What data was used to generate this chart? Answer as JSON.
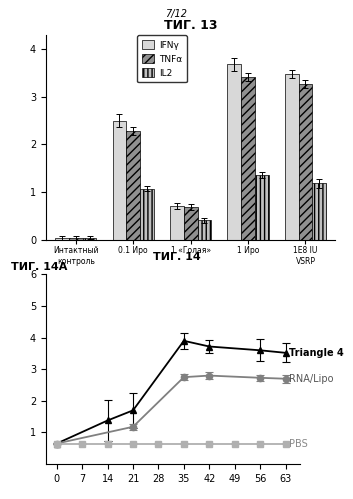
{
  "fig13": {
    "title": "ΤИГ. 13",
    "categories": [
      "Интактный\nконтроль",
      "0.1 Иро",
      "1 «Голая»",
      "1 Иро",
      "1E8 IU\nVSRP"
    ],
    "IFNy": [
      0.03,
      2.5,
      0.7,
      3.68,
      3.48
    ],
    "TNFa": [
      0.04,
      2.28,
      0.68,
      3.42,
      3.27
    ],
    "IL2": [
      0.04,
      1.07,
      0.4,
      1.35,
      1.18
    ],
    "IFNy_err": [
      0.04,
      0.13,
      0.06,
      0.13,
      0.09
    ],
    "TNFa_err": [
      0.04,
      0.09,
      0.06,
      0.09,
      0.09
    ],
    "IL2_err": [
      0.03,
      0.06,
      0.06,
      0.06,
      0.09
    ],
    "ylim": [
      0,
      4.3
    ],
    "yticks": [
      0,
      1,
      2,
      3,
      4
    ],
    "legend_labels": [
      "IFNγ",
      "TNFα",
      "IL2"
    ],
    "color_IFNy": "#d8d8d8",
    "color_TNFa": "#909090",
    "color_IL2": "#c0c0c0",
    "hatch_IFNy": "",
    "hatch_TNFa": "////",
    "hatch_IL2": "||||"
  },
  "fig14a": {
    "title": "ΤИГ. 14А",
    "fig_label": "ΤИГ. 14",
    "xvalues": [
      0,
      7,
      14,
      21,
      28,
      35,
      42,
      49,
      56,
      63
    ],
    "Triangle4_y": [
      0.65,
      null,
      1.38,
      1.7,
      null,
      3.9,
      3.72,
      null,
      3.6,
      3.52
    ],
    "RNALipo_y": [
      0.65,
      null,
      null,
      1.18,
      null,
      2.75,
      2.8,
      null,
      2.73,
      2.7
    ],
    "PBS_y": [
      0.65,
      0.65,
      0.65,
      0.65,
      0.65,
      0.65,
      0.65,
      0.65,
      0.65,
      0.65
    ],
    "Triangle4_err": [
      0.03,
      null,
      0.65,
      0.55,
      null,
      0.25,
      0.2,
      null,
      0.35,
      0.3
    ],
    "RNALipo_err": [
      0.03,
      null,
      null,
      0.1,
      null,
      0.1,
      0.1,
      null,
      0.1,
      0.12
    ],
    "PBS_err": [
      0.03,
      0.03,
      0.03,
      0.03,
      0.03,
      0.03,
      0.03,
      0.03,
      0.03,
      0.03
    ],
    "ylim": [
      0,
      6
    ],
    "yticks": [
      1,
      2,
      3,
      4,
      5,
      6
    ],
    "xticks": [
      0,
      7,
      14,
      21,
      28,
      35,
      42,
      49,
      56,
      63
    ],
    "label_Triangle4": "Triangle 4",
    "label_RNALipo": "RNA/Lipo",
    "label_PBS": "PBS"
  },
  "page_label": "7/12",
  "bg_color": "#ffffff"
}
